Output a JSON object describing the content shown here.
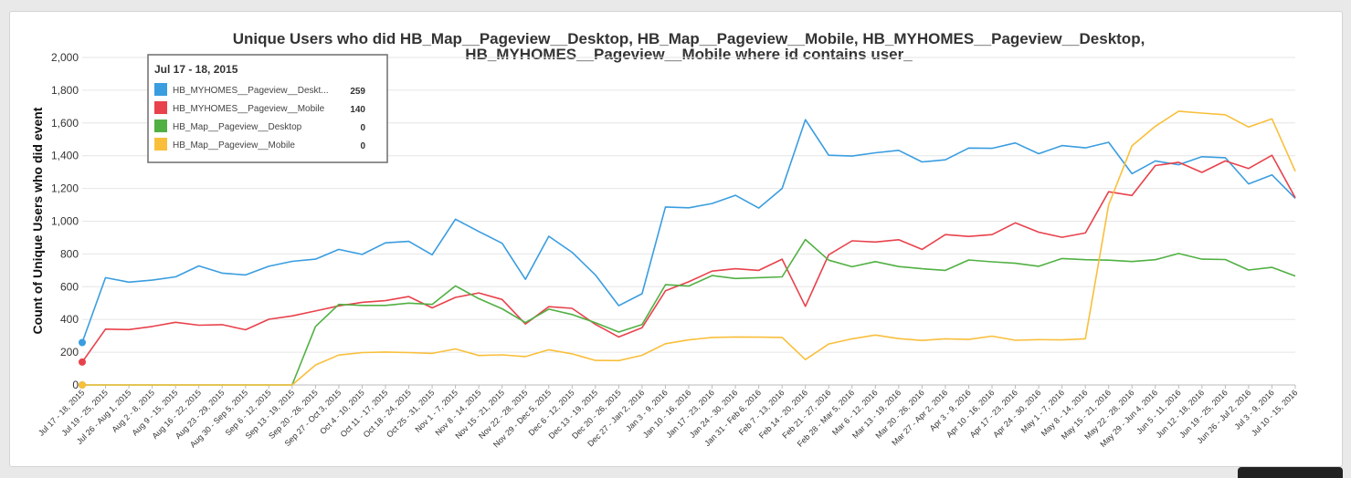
{
  "chart_data": {
    "type": "line",
    "title": "Unique Users who did HB_Map__Pageview__Desktop, HB_Map__Pageview__Mobile, HB_MYHOMES__Pageview__Desktop,",
    "title_line2": "HB_MYHOMES__Pageview__Mobile where id contains user_",
    "ylabel": "Count of Unique Users who did event",
    "ylim": [
      0,
      2000
    ],
    "yticks": [
      "0",
      "200",
      "400",
      "600",
      "800",
      "1,000",
      "1,200",
      "1,400",
      "1,600",
      "1,800",
      "2,000"
    ],
    "grid": true,
    "x": [
      "Jul 17 - 18, 2015",
      "Jul 19 - 25, 2015",
      "Jul 26 - Aug 1, 2015",
      "Aug 2 - 8, 2015",
      "Aug 9 - 15, 2015",
      "Aug 16 - 22, 2015",
      "Aug 23 - 29, 2015",
      "Aug 30 - Sep 5, 2015",
      "Sep 6 - 12, 2015",
      "Sep 13 - 19, 2015",
      "Sep 20 - 26, 2015",
      "Sep 27 - Oct 3, 2015",
      "Oct 4 - 10, 2015",
      "Oct 11 - 17, 2015",
      "Oct 18 - 24, 2015",
      "Oct 25 - 31, 2015",
      "Nov 1 - 7, 2015",
      "Nov 8 - 14, 2015",
      "Nov 15 - 21, 2015",
      "Nov 22 - 28, 2015",
      "Nov 29 - Dec 5, 2015",
      "Dec 6 - 12, 2015",
      "Dec 13 - 19, 2015",
      "Dec 20 - 26, 2015",
      "Dec 27 - Jan 2, 2016",
      "Jan 3 - 9, 2016",
      "Jan 10 - 16, 2016",
      "Jan 17 - 23, 2016",
      "Jan 24 - 30, 2016",
      "Jan 31 - Feb 6, 2016",
      "Feb 7 - 13, 2016",
      "Feb 14 - 20, 2016",
      "Feb 21 - 27, 2016",
      "Feb 28 - Mar 5, 2016",
      "Mar 6 - 12, 2016",
      "Mar 13 - 19, 2016",
      "Mar 20 - 26, 2016",
      "Mar 27 - Apr 2, 2016",
      "Apr 3 - 9, 2016",
      "Apr 10 - 16, 2016",
      "Apr 17 - 23, 2016",
      "Apr 24 - 30, 2016",
      "May 1 - 7, 2016",
      "May 8 - 14, 2016",
      "May 15 - 21, 2016",
      "May 22 - 28, 2016",
      "May 29 - Jun 4, 2016",
      "Jun 5 - 11, 2016",
      "Jun 12 - 18, 2016",
      "Jun 19 - 25, 2016",
      "Jun 26 - Jul 2, 2016",
      "Jul 3 - 9, 2016",
      "Jul 10 - 15, 2016"
    ],
    "series": [
      {
        "name": "HB_MYHOMES__Pageview__Desktop",
        "color": "#3a9de0",
        "values": [
          259,
          655,
          628,
          640,
          660,
          727,
          683,
          672,
          725,
          755,
          768,
          828,
          797,
          868,
          877,
          795,
          1012,
          937,
          865,
          645,
          908,
          810,
          672,
          484,
          557,
          1087,
          1082,
          1108,
          1158,
          1080,
          1200,
          1620,
          1403,
          1398,
          1418,
          1433,
          1362,
          1375,
          1447,
          1445,
          1478,
          1412,
          1462,
          1448,
          1482,
          1290,
          1368,
          1345,
          1394,
          1388,
          1228,
          1283,
          1140
        ]
      },
      {
        "name": "HB_MYHOMES__Pageview__Mobile",
        "color": "#e8424c",
        "values": [
          140,
          341,
          338,
          357,
          383,
          365,
          368,
          337,
          401,
          422,
          452,
          483,
          505,
          515,
          540,
          471,
          535,
          562,
          522,
          372,
          478,
          468,
          370,
          293,
          350,
          575,
          630,
          695,
          710,
          700,
          768,
          480,
          795,
          880,
          873,
          887,
          828,
          918,
          907,
          918,
          990,
          933,
          902,
          928,
          1180,
          1157,
          1340,
          1360,
          1298,
          1368,
          1322,
          1403,
          1143
        ]
      },
      {
        "name": "HB_Map__Pageview__Desktop",
        "color": "#51b043",
        "values": [
          0,
          0,
          0,
          0,
          0,
          0,
          0,
          0,
          0,
          0,
          357,
          492,
          486,
          486,
          500,
          492,
          605,
          527,
          465,
          381,
          463,
          430,
          380,
          323,
          369,
          612,
          604,
          668,
          650,
          655,
          660,
          888,
          762,
          722,
          753,
          723,
          710,
          700,
          763,
          752,
          743,
          725,
          772,
          765,
          762,
          754,
          765,
          803,
          768,
          766,
          702,
          718,
          665
        ]
      },
      {
        "name": "HB_Map__Pageview__Mobile",
        "color": "#f9bf3b",
        "values": [
          0,
          0,
          0,
          0,
          0,
          0,
          0,
          0,
          0,
          0,
          122,
          183,
          198,
          201,
          198,
          193,
          220,
          180,
          184,
          173,
          215,
          190,
          150,
          149,
          181,
          252,
          275,
          290,
          293,
          292,
          290,
          155,
          250,
          282,
          305,
          283,
          272,
          282,
          278,
          298,
          273,
          277,
          275,
          282,
          1100,
          1460,
          1580,
          1672,
          1660,
          1650,
          1575,
          1625,
          1305
        ]
      }
    ],
    "tooltip": {
      "date": "Jul 17 - 18, 2015",
      "entries": [
        {
          "name": "HB_MYHOMES__Pageview__Deskt...",
          "value": "259",
          "color": "#3a9de0"
        },
        {
          "name": "HB_MYHOMES__Pageview__Mobile",
          "value": "140",
          "color": "#e8424c"
        },
        {
          "name": "HB_Map__Pageview__Desktop",
          "value": "0",
          "color": "#51b043"
        },
        {
          "name": "HB_Map__Pageview__Mobile",
          "value": "0",
          "color": "#f9bf3b"
        }
      ]
    }
  }
}
